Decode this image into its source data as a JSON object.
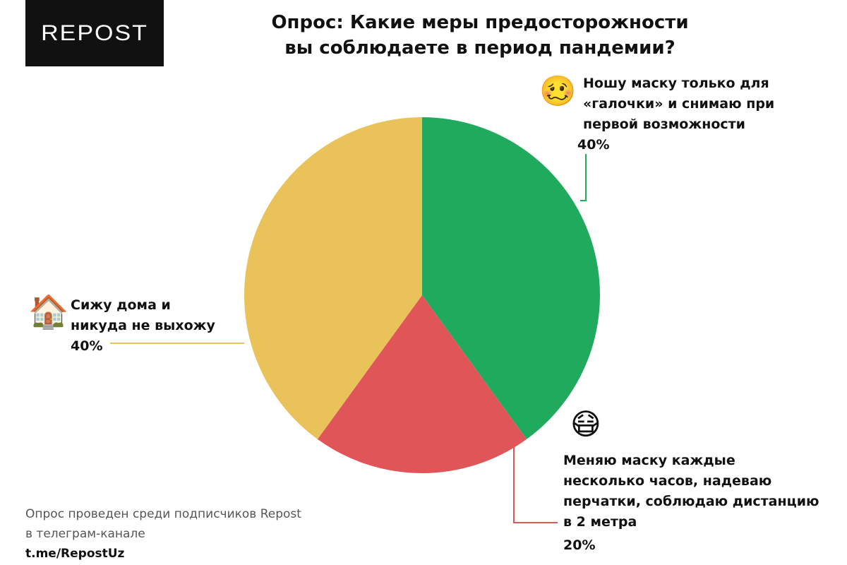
{
  "logo": {
    "text": "REPOST"
  },
  "header": {
    "title_line1": "Опрос: Какие меры предосторожности",
    "title_line2": "вы соблюдаете в период пандемии?"
  },
  "chart_data": {
    "type": "pie",
    "title": "Опрос: Какие меры предосторожности вы соблюдаете в период пандемии?",
    "slices": [
      {
        "label": "Ношу маску только для «галочки» и снимаю при первой возможности",
        "label_lines": [
          "Ношу маску только для",
          "«галочки» и снимаю при",
          "первой возможности"
        ],
        "value": 40,
        "value_label": "40%",
        "color": "#1faa5e",
        "icon": "woozy-face-icon"
      },
      {
        "label": "Меняю маску каждые несколько часов, надеваю перчатки, соблюдаю дистанцию в 2 метра",
        "label_lines": [
          "Меняю маску каждые",
          "несколько часов, надеваю",
          "перчатки, соблюдаю дистанцию",
          "в 2 метра"
        ],
        "value": 20,
        "value_label": "20%",
        "color": "#e05658",
        "icon": "medical-mask-face-icon"
      },
      {
        "label": "Сижу дома и никуда не выхожу",
        "label_lines": [
          "Сижу дома и",
          "никуда не выхожу"
        ],
        "value": 40,
        "value_label": "40%",
        "color": "#e9c25a",
        "icon": "house-icon"
      }
    ],
    "start": "12 o'clock",
    "direction": "clockwise"
  },
  "footer": {
    "line1": "Опрос проведен среди подписчиков Repost",
    "line2_prefix": "в телеграм-канале ",
    "line2_link": "t.me/RepostUz"
  },
  "icons": {
    "woozy": "🥴",
    "mask": "😷",
    "house": "🏠"
  }
}
